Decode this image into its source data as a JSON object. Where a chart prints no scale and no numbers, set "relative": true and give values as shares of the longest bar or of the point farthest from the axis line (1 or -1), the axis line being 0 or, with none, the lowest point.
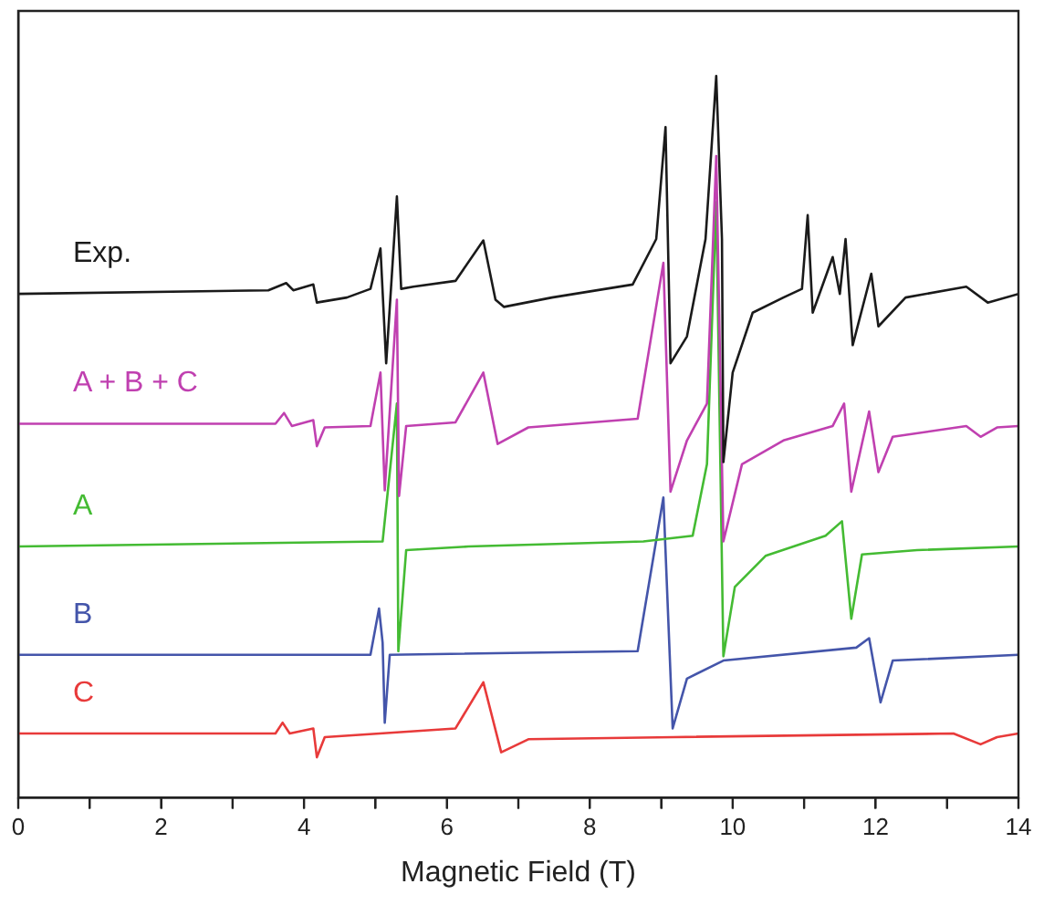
{
  "chart_data": {
    "type": "line",
    "relative": true,
    "xlabel": "Magnetic Field (T)",
    "xlim": [
      0,
      14
    ],
    "xticks": [
      0,
      {
        "value": 1,
        "label": null
      },
      2,
      {
        "value": 3,
        "label": null
      },
      4,
      {
        "value": 5,
        "label": null
      },
      6,
      {
        "value": 7,
        "label": null
      },
      8,
      {
        "value": 9,
        "label": null
      },
      10,
      {
        "value": 11,
        "label": null
      },
      12,
      {
        "value": 13,
        "label": null
      },
      14
    ],
    "tick_labels": "x",
    "grid": false,
    "legend": false,
    "marker": "none",
    "line_style": "solid",
    "series": [
      {
        "name": "Exp.",
        "color": "#1a1a1a",
        "x": [
          0,
          3.5,
          3.75,
          3.85,
          4.13,
          4.18,
          4.6,
          4.93,
          5.07,
          5.15,
          5.3,
          5.36,
          5.53,
          6.12,
          6.51,
          6.68,
          6.8,
          7.47,
          8.6,
          8.93,
          9.06,
          9.13,
          9.36,
          9.62,
          9.77,
          9.85,
          9.87,
          10.0,
          10.28,
          10.71,
          10.97,
          11.05,
          11.12,
          11.4,
          11.5,
          11.58,
          11.68,
          11.94,
          12.04,
          12.42,
          13.27,
          13.57,
          14
        ],
        "values": [
          0.698,
          0.703,
          0.713,
          0.703,
          0.711,
          0.686,
          0.693,
          0.705,
          0.761,
          0.602,
          0.833,
          0.705,
          0.708,
          0.716,
          0.772,
          0.69,
          0.68,
          0.693,
          0.711,
          0.774,
          0.929,
          0.602,
          0.639,
          0.774,
          1.0,
          0.774,
          0.465,
          0.589,
          0.672,
          0.693,
          0.705,
          0.807,
          0.672,
          0.749,
          0.698,
          0.774,
          0.627,
          0.726,
          0.653,
          0.693,
          0.708,
          0.686,
          0.698
        ]
      },
      {
        "name": "A + B + C",
        "color": "#c040b0",
        "x": [
          0,
          3.6,
          3.72,
          3.83,
          4.13,
          4.18,
          4.29,
          4.93,
          5.07,
          5.13,
          5.3,
          5.33,
          5.43,
          6.12,
          6.51,
          6.71,
          7.14,
          8.67,
          9.03,
          9.13,
          9.36,
          9.64,
          9.77,
          9.87,
          10.13,
          10.71,
          11.4,
          11.56,
          11.66,
          11.91,
          12.04,
          12.24,
          13.27,
          13.47,
          13.7,
          14
        ],
        "values": [
          0.518,
          0.518,
          0.533,
          0.515,
          0.523,
          0.487,
          0.513,
          0.515,
          0.589,
          0.426,
          0.69,
          0.418,
          0.515,
          0.52,
          0.589,
          0.49,
          0.513,
          0.525,
          0.741,
          0.424,
          0.495,
          0.546,
          0.889,
          0.355,
          0.462,
          0.495,
          0.515,
          0.546,
          0.424,
          0.535,
          0.451,
          0.5,
          0.515,
          0.5,
          0.513,
          0.515
        ]
      },
      {
        "name": "A",
        "color": "#44bb33",
        "x": [
          0,
          5.1,
          5.3,
          5.32,
          5.43,
          6.3,
          8.75,
          9.44,
          9.64,
          9.77,
          9.87,
          10.03,
          10.46,
          11.3,
          11.53,
          11.66,
          11.81,
          12.58,
          14
        ],
        "values": [
          0.348,
          0.355,
          0.546,
          0.203,
          0.343,
          0.348,
          0.355,
          0.363,
          0.462,
          0.825,
          0.196,
          0.292,
          0.335,
          0.363,
          0.383,
          0.248,
          0.337,
          0.343,
          0.348
        ]
      },
      {
        "name": "B",
        "color": "#4455aa",
        "x": [
          0,
          4.93,
          5.05,
          5.1,
          5.13,
          5.2,
          8.67,
          9.03,
          9.16,
          9.36,
          9.87,
          11.73,
          11.91,
          12.07,
          12.24,
          14
        ],
        "values": [
          0.198,
          0.198,
          0.262,
          0.215,
          0.104,
          0.198,
          0.203,
          0.416,
          0.096,
          0.165,
          0.19,
          0.208,
          0.221,
          0.132,
          0.19,
          0.198
        ]
      },
      {
        "name": "C",
        "color": "#e83a3a",
        "x": [
          0,
          3.6,
          3.7,
          3.8,
          4.13,
          4.18,
          4.29,
          6.12,
          6.51,
          6.76,
          7.14,
          9.18,
          13.09,
          13.47,
          13.7,
          14
        ],
        "values": [
          0.089,
          0.089,
          0.104,
          0.089,
          0.096,
          0.056,
          0.084,
          0.096,
          0.16,
          0.063,
          0.081,
          0.084,
          0.089,
          0.074,
          0.084,
          0.089
        ]
      }
    ]
  }
}
